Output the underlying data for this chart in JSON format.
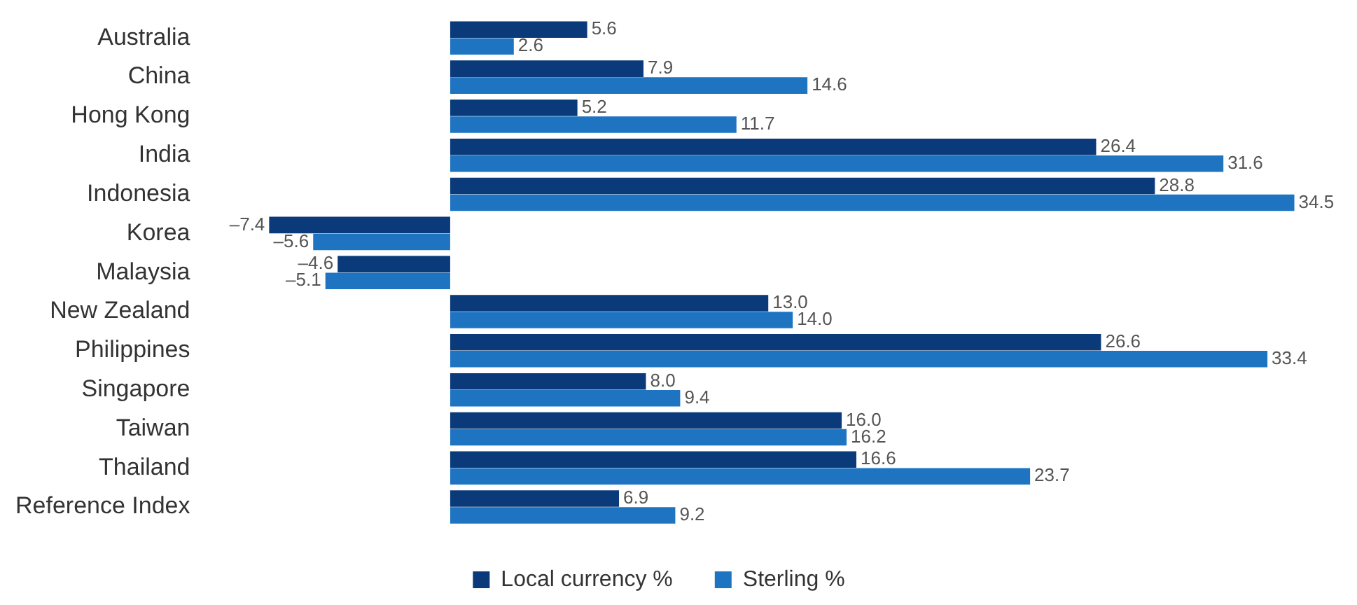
{
  "chart_data": {
    "type": "bar",
    "orientation": "horizontal",
    "categories": [
      "Australia",
      "China",
      "Hong Kong",
      "India",
      "Indonesia",
      "Korea",
      "Malaysia",
      "New Zealand",
      "Philippines",
      "Singapore",
      "Taiwan",
      "Thailand",
      "Reference Index"
    ],
    "series": [
      {
        "name": "Local currency %",
        "color": "#0b3a7a",
        "values": [
          5.6,
          7.9,
          5.2,
          26.4,
          28.8,
          -7.4,
          -4.6,
          13.0,
          26.6,
          8.0,
          16.0,
          16.6,
          6.9
        ],
        "value_labels": [
          "5.6",
          "7.9",
          "5.2",
          "26.4",
          "28.8",
          "–7.4",
          "–4.6",
          "13.0",
          "26.6",
          "8.0",
          "16.0",
          "16.6",
          "6.9"
        ]
      },
      {
        "name": "Sterling %",
        "color": "#1f74c2",
        "values": [
          2.6,
          14.6,
          11.7,
          31.6,
          34.5,
          -5.6,
          -5.1,
          14.0,
          33.4,
          9.4,
          16.2,
          23.7,
          9.2
        ],
        "value_labels": [
          "2.6",
          "14.6",
          "11.7",
          "31.6",
          "34.5",
          "–5.6",
          "–5.1",
          "14.0",
          "33.4",
          "9.4",
          "16.2",
          "23.7",
          "9.2"
        ]
      }
    ],
    "legend": "bottom"
  }
}
